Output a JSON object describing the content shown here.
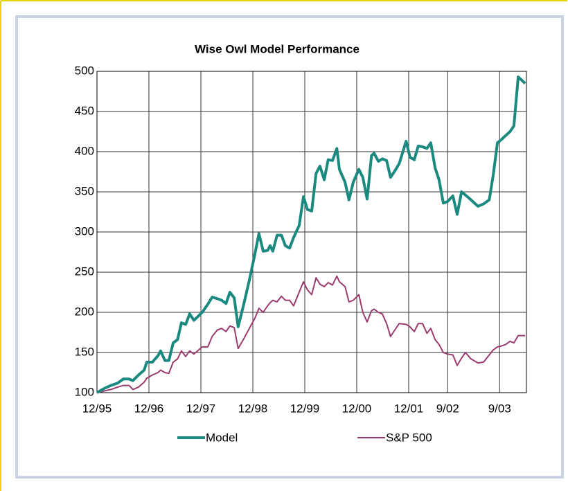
{
  "chart_data": {
    "type": "line",
    "title": "Wise Owl Model Performance",
    "x": [
      0,
      1.6,
      3.2,
      4.8,
      6.1,
      7.4,
      8.3,
      9.6,
      10.9,
      11.5,
      12.8,
      14.1,
      14.7,
      15.7,
      16.6,
      17.6,
      18.6,
      19.5,
      20.5,
      21.4,
      22.4,
      24.3,
      25.6,
      26.6,
      27.8,
      28.8,
      29.8,
      30.7,
      31.7,
      32.6,
      33.9,
      35.2,
      36.5,
      37.4,
      38.4,
      39.4,
      40,
      40.6,
      41.6,
      42.6,
      43.5,
      44.5,
      45.4,
      46.7,
      47.7,
      48.6,
      49.6,
      50.6,
      51.5,
      52.5,
      53.4,
      54.4,
      55.4,
      56,
      57.3,
      58.2,
      59.2,
      60.5,
      61.4,
      62.4,
      63.4,
      64,
      65,
      65.9,
      66.9,
      67.8,
      68.8,
      69.8,
      71.4,
      72.3,
      73.3,
      74.2,
      75.2,
      76.2,
      77.1,
      78.1,
      79,
      80,
      81,
      82.2,
      83.2,
      84.2,
      85.1,
      86.4,
      88,
      89.3,
      90.6,
      91.5,
      92.5,
      93.4,
      94.4,
      95.4,
      96.3,
      97.3,
      97.9,
      98.9
    ],
    "series": [
      {
        "name": "Model",
        "color": "#1a8a80",
        "values": [
          100,
          105,
          109,
          112,
          117,
          117,
          115,
          122,
          128,
          138,
          138,
          146,
          152,
          140,
          140,
          162,
          166,
          187,
          185,
          198,
          190,
          200,
          210,
          219,
          217,
          215,
          211,
          225,
          218,
          182,
          210,
          240,
          273,
          298,
          276,
          277,
          283,
          276,
          296,
          296,
          283,
          280,
          293,
          308,
          344,
          328,
          326,
          373,
          382,
          365,
          390,
          389,
          404,
          378,
          362,
          340,
          362,
          378,
          368,
          341,
          395,
          398,
          388,
          391,
          389,
          368,
          376,
          385,
          413,
          393,
          390,
          407,
          406,
          404,
          411,
          380,
          365,
          336,
          338,
          345,
          322,
          350,
          346,
          340,
          332,
          335,
          340,
          370,
          411,
          415,
          420,
          425,
          432,
          493,
          490,
          485
        ]
      },
      {
        "name": "S&P 500",
        "color": "#9b3a6e",
        "values": [
          100,
          102,
          104,
          107,
          109,
          109,
          104,
          107,
          113,
          118,
          122,
          125,
          128,
          125,
          124,
          138,
          142,
          152,
          145,
          152,
          148,
          157,
          157,
          170,
          178,
          180,
          176,
          183,
          181,
          155,
          167,
          180,
          193,
          205,
          200,
          208,
          212,
          215,
          213,
          220,
          215,
          215,
          208,
          225,
          238,
          228,
          222,
          243,
          235,
          232,
          237,
          234,
          245,
          238,
          232,
          213,
          215,
          222,
          200,
          188,
          202,
          204,
          200,
          198,
          186,
          170,
          178,
          186,
          185,
          182,
          176,
          186,
          186,
          174,
          180,
          166,
          160,
          150,
          148,
          147,
          134,
          143,
          150,
          142,
          137,
          138,
          147,
          153,
          157,
          158,
          160,
          164,
          162,
          171,
          171,
          171
        ]
      }
    ],
    "xlim": [
      0,
      99.2
    ],
    "xticks": [
      {
        "value": 0,
        "label": "12/95"
      },
      {
        "value": 12,
        "label": "12/96"
      },
      {
        "value": 24,
        "label": "12/97"
      },
      {
        "value": 36,
        "label": "12/98"
      },
      {
        "value": 48,
        "label": "12/99"
      },
      {
        "value": 60,
        "label": "12/00"
      },
      {
        "value": 72,
        "label": "12/01"
      },
      {
        "value": 81,
        "label": "9/02"
      },
      {
        "value": 93,
        "label": "9/03"
      }
    ],
    "ylim": [
      100,
      500
    ],
    "yticks": [
      100,
      150,
      200,
      250,
      300,
      350,
      400,
      450,
      500
    ],
    "grid": true
  }
}
